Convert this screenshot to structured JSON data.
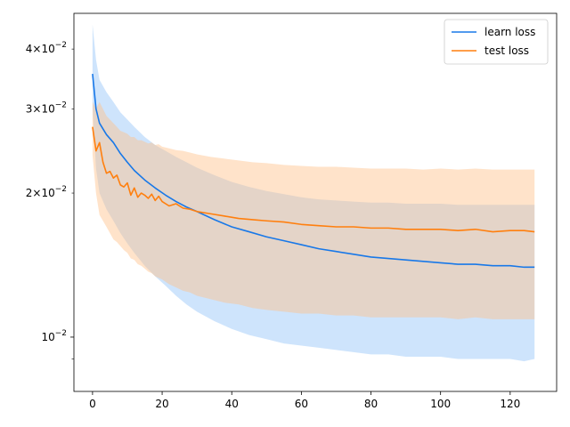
{
  "chart_data": {
    "type": "line",
    "title": "",
    "xlabel": "",
    "ylabel": "",
    "yscale": "log",
    "xlim": [
      -5.35,
      133.35
    ],
    "ylim": [
      0.0077,
      0.0475
    ],
    "xticks": [
      {
        "value": 0,
        "label": "0"
      },
      {
        "value": 20,
        "label": "20"
      },
      {
        "value": 40,
        "label": "40"
      },
      {
        "value": 60,
        "label": "60"
      },
      {
        "value": 80,
        "label": "80"
      },
      {
        "value": 100,
        "label": "100"
      },
      {
        "value": 120,
        "label": "120"
      }
    ],
    "yticks_major": [
      {
        "value": 0.01,
        "label": "10^-2"
      }
    ],
    "yticks_minor": [
      {
        "value": 0.009,
        "label": ""
      },
      {
        "value": 0.02,
        "label": "2×10^-2"
      },
      {
        "value": 0.03,
        "label": "3×10^-2"
      },
      {
        "value": 0.04,
        "label": "4×10^-2"
      }
    ],
    "grid": false,
    "legend_position": "top-right",
    "series": [
      {
        "name": "learn loss",
        "color": "#1878e8",
        "band_color": "#9dcafa",
        "x": [
          0,
          1,
          2,
          4,
          6,
          8,
          10,
          12,
          15,
          18,
          21,
          24,
          27,
          30,
          35,
          40,
          45,
          50,
          55,
          60,
          65,
          70,
          75,
          80,
          85,
          90,
          95,
          100,
          105,
          110,
          115,
          120,
          124,
          127
        ],
        "mean": [
          0.0355,
          0.03,
          0.028,
          0.0265,
          0.0255,
          0.0242,
          0.0232,
          0.0223,
          0.0213,
          0.0205,
          0.0198,
          0.0192,
          0.0187,
          0.0183,
          0.0176,
          0.017,
          0.0166,
          0.0162,
          0.0159,
          0.0156,
          0.0153,
          0.0151,
          0.0149,
          0.0147,
          0.0146,
          0.0145,
          0.0144,
          0.0143,
          0.0142,
          0.0142,
          0.0141,
          0.0141,
          0.014,
          0.014
        ],
        "upper": [
          0.045,
          0.038,
          0.0345,
          0.0325,
          0.031,
          0.0295,
          0.0285,
          0.0275,
          0.0262,
          0.0252,
          0.0245,
          0.0238,
          0.0232,
          0.0226,
          0.0218,
          0.0211,
          0.0206,
          0.0202,
          0.0199,
          0.0196,
          0.0194,
          0.0193,
          0.0192,
          0.0191,
          0.0191,
          0.019,
          0.019,
          0.019,
          0.0189,
          0.0189,
          0.0189,
          0.0189,
          0.0189,
          0.0189
        ],
        "lower": [
          0.03,
          0.0225,
          0.02,
          0.0185,
          0.0175,
          0.0165,
          0.0157,
          0.015,
          0.0141,
          0.0134,
          0.0128,
          0.0122,
          0.0117,
          0.0113,
          0.0108,
          0.0104,
          0.0101,
          0.0099,
          0.0097,
          0.0096,
          0.0095,
          0.0094,
          0.0093,
          0.0092,
          0.0092,
          0.0091,
          0.0091,
          0.0091,
          0.009,
          0.009,
          0.009,
          0.009,
          0.0089,
          0.009
        ]
      },
      {
        "name": "test loss",
        "color": "#ff7f0e",
        "band_color": "#ffc08a",
        "x": [
          0,
          1,
          2,
          3,
          4,
          5,
          6,
          7,
          8,
          9,
          10,
          11,
          12,
          13,
          14,
          15,
          16,
          17,
          18,
          19,
          20,
          22,
          24,
          26,
          28,
          30,
          34,
          38,
          42,
          46,
          50,
          55,
          60,
          65,
          70,
          75,
          80,
          85,
          90,
          95,
          100,
          105,
          110,
          115,
          120,
          124,
          127
        ],
        "mean": [
          0.0275,
          0.0245,
          0.0255,
          0.0232,
          0.022,
          0.0222,
          0.0215,
          0.0218,
          0.0208,
          0.0206,
          0.021,
          0.0198,
          0.0205,
          0.0196,
          0.02,
          0.0198,
          0.0195,
          0.0199,
          0.0193,
          0.0197,
          0.0192,
          0.0188,
          0.019,
          0.0186,
          0.0185,
          0.0183,
          0.0181,
          0.0179,
          0.0177,
          0.0176,
          0.0175,
          0.0174,
          0.0172,
          0.0171,
          0.017,
          0.017,
          0.0169,
          0.0169,
          0.0168,
          0.0168,
          0.0168,
          0.0167,
          0.0168,
          0.0166,
          0.0167,
          0.0167,
          0.0166
        ],
        "upper": [
          0.031,
          0.03,
          0.031,
          0.03,
          0.029,
          0.0285,
          0.028,
          0.0275,
          0.027,
          0.0268,
          0.0266,
          0.0262,
          0.0262,
          0.0258,
          0.0258,
          0.0256,
          0.0254,
          0.0255,
          0.0252,
          0.0253,
          0.025,
          0.0248,
          0.0246,
          0.0245,
          0.0243,
          0.0241,
          0.0238,
          0.0236,
          0.0234,
          0.0232,
          0.0231,
          0.0229,
          0.0228,
          0.0227,
          0.0227,
          0.0226,
          0.0225,
          0.0225,
          0.0225,
          0.0224,
          0.0225,
          0.0224,
          0.0225,
          0.0224,
          0.0224,
          0.0224,
          0.0224
        ],
        "lower": [
          0.024,
          0.02,
          0.018,
          0.0175,
          0.017,
          0.0165,
          0.016,
          0.0158,
          0.0155,
          0.0152,
          0.015,
          0.0146,
          0.0145,
          0.0142,
          0.0141,
          0.0139,
          0.0137,
          0.0136,
          0.0134,
          0.0133,
          0.0132,
          0.0129,
          0.0127,
          0.0125,
          0.0124,
          0.0122,
          0.012,
          0.0118,
          0.0117,
          0.0115,
          0.0114,
          0.0113,
          0.0112,
          0.0112,
          0.0111,
          0.0111,
          0.011,
          0.011,
          0.011,
          0.011,
          0.011,
          0.0109,
          0.011,
          0.0109,
          0.0109,
          0.0109,
          0.0109
        ]
      }
    ]
  }
}
